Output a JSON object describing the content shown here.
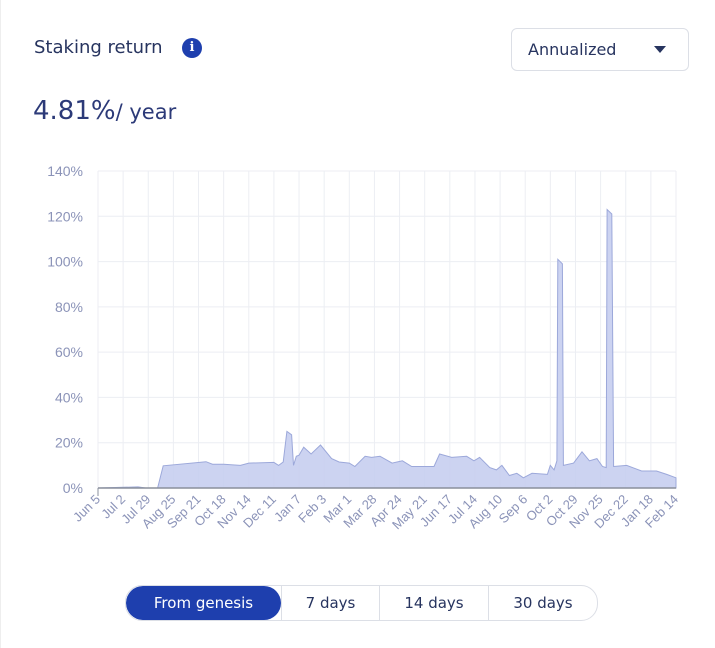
{
  "header": {
    "title": "Staking return",
    "info_icon": "info-icon",
    "dropdown": {
      "selected": "Annualized",
      "icon": "caret-down-icon"
    }
  },
  "summary": {
    "value": "4.81%",
    "unit": "/ year"
  },
  "colors": {
    "accent": "#1e3fae",
    "area_fill": "#c7cef0",
    "area_stroke": "#9ca8da",
    "axis_text": "#8b93b8"
  },
  "range_buttons": [
    {
      "label": "From genesis",
      "active": true
    },
    {
      "label": "7 days",
      "active": false
    },
    {
      "label": "14 days",
      "active": false
    },
    {
      "label": "30 days",
      "active": false
    }
  ],
  "chart_data": {
    "type": "area",
    "ylim": [
      0,
      140
    ],
    "y_ticks": [
      "0%",
      "20%",
      "40%",
      "60%",
      "80%",
      "100%",
      "120%",
      "140%"
    ],
    "x_ticks": [
      "Jun 5",
      "Jul 2",
      "Jul 29",
      "Aug 25",
      "Sep 21",
      "Oct 18",
      "Nov 14",
      "Dec 11",
      "Jan 7",
      "Feb 3",
      "Mar 1",
      "Mar 28",
      "Apr 24",
      "May 21",
      "Jun 17",
      "Jul 14",
      "Aug 10",
      "Sep 6",
      "Oct 2",
      "Oct 29",
      "Nov 25",
      "Dec 22",
      "Jan 18",
      "Feb 14"
    ],
    "grid": true,
    "unit": "%",
    "points": [
      [
        "Jun 5",
        0
      ],
      [
        "Jul 18",
        0.5
      ],
      [
        "Jul 26",
        0
      ],
      [
        "Aug 8",
        0
      ],
      [
        "Aug 14",
        9.8
      ],
      [
        "Sep 29",
        11.6
      ],
      [
        "Oct 6",
        10.5
      ],
      [
        "Oct 18",
        10.5
      ],
      [
        "Nov 5",
        10
      ],
      [
        "Nov 14",
        11
      ],
      [
        "Dec 11",
        11.3
      ],
      [
        "Dec 16",
        10
      ],
      [
        "Dec 21",
        11.5
      ],
      [
        "Dec 25",
        25
      ],
      [
        "Dec 30",
        23.5
      ],
      [
        "Jan 1",
        10
      ],
      [
        "Jan 4",
        14
      ],
      [
        "Jan 7",
        14.5
      ],
      [
        "Jan 12",
        18
      ],
      [
        "Jan 20",
        15
      ],
      [
        "Jan 30",
        19
      ],
      [
        "Feb 11",
        13
      ],
      [
        "Feb 19",
        11.5
      ],
      [
        "Mar 1",
        11
      ],
      [
        "Mar 7",
        9.5
      ],
      [
        "Mar 18",
        14
      ],
      [
        "Mar 25",
        13.5
      ],
      [
        "Apr 3",
        14
      ],
      [
        "Apr 16",
        11
      ],
      [
        "Apr 27",
        12
      ],
      [
        "May 7",
        9.5
      ],
      [
        "May 31",
        9.5
      ],
      [
        "Jun 6",
        15
      ],
      [
        "Jun 19",
        13.5
      ],
      [
        "Jul 5",
        14
      ],
      [
        "Jul 13",
        12
      ],
      [
        "Jul 19",
        13.5
      ],
      [
        "Jul 30",
        9
      ],
      [
        "Aug 6",
        8
      ],
      [
        "Aug 12",
        10
      ],
      [
        "Aug 20",
        5.5
      ],
      [
        "Aug 28",
        6.5
      ],
      [
        "Sep 4",
        4.5
      ],
      [
        "Sep 13",
        6.5
      ],
      [
        "Sep 29",
        6
      ],
      [
        "Oct 2",
        10
      ],
      [
        "Oct 6",
        8
      ],
      [
        "Oct 9",
        12
      ],
      [
        "Oct 10",
        101
      ],
      [
        "Oct 15",
        99
      ],
      [
        "Oct 16",
        10
      ],
      [
        "Oct 27",
        11
      ],
      [
        "Nov 5",
        16
      ],
      [
        "Nov 13",
        12
      ],
      [
        "Nov 21",
        13
      ],
      [
        "Nov 27",
        9.5
      ],
      [
        "Dec 1",
        9
      ],
      [
        "Dec 2",
        123
      ],
      [
        "Dec 7",
        121
      ],
      [
        "Dec 9",
        9.5
      ],
      [
        "Dec 23",
        10
      ],
      [
        "Jan 8",
        7.5
      ],
      [
        "Jan 24",
        7.5
      ],
      [
        "Feb 4",
        6
      ],
      [
        "Feb 14",
        4.5
      ]
    ]
  }
}
